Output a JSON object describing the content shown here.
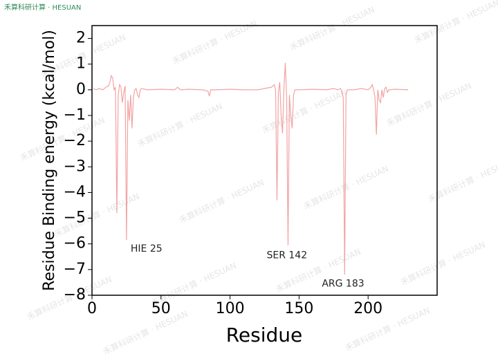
{
  "header": "禾算科研计算 · HESUAN",
  "watermark": "禾算科研计算 · HESUAN",
  "chart_data": {
    "type": "line",
    "xlabel": "Residue",
    "ylabel": "Residue Binding energy (kcal/mol)",
    "x": [
      1,
      3,
      5,
      8,
      10,
      12,
      13,
      14,
      15,
      16,
      17,
      18,
      19,
      20,
      21,
      22,
      23,
      24,
      25,
      26,
      27,
      28,
      29,
      30,
      31,
      32,
      33,
      34,
      35,
      36,
      40,
      50,
      60,
      62,
      64,
      70,
      80,
      84,
      85,
      86,
      90,
      100,
      110,
      120,
      125,
      130,
      132,
      133,
      134,
      135,
      136,
      137,
      138,
      139,
      140,
      141,
      142,
      143,
      144,
      145,
      146,
      147,
      150,
      160,
      170,
      175,
      178,
      180,
      181,
      182,
      183,
      184,
      185,
      190,
      195,
      200,
      202,
      203,
      204,
      205,
      206,
      207,
      208,
      209,
      210,
      211,
      212,
      213,
      214,
      215,
      220,
      229
    ],
    "values": [
      0.05,
      0.0,
      0.05,
      0.0,
      0.1,
      0.15,
      0.3,
      0.55,
      0.45,
      0.0,
      0.1,
      -4.8,
      -0.2,
      0.2,
      0.1,
      -0.5,
      -0.1,
      0.15,
      -5.85,
      -0.4,
      -1.2,
      -0.2,
      -1.5,
      -0.3,
      0.0,
      0.05,
      -0.2,
      -0.3,
      0.0,
      0.05,
      0.0,
      0.02,
      0.0,
      0.1,
      0.0,
      0.02,
      0.0,
      -0.05,
      -0.25,
      0.0,
      0.0,
      0.02,
      0.0,
      0.0,
      0.05,
      0.1,
      0.2,
      0.0,
      -4.3,
      -0.1,
      0.3,
      -1.0,
      -1.7,
      0.0,
      1.05,
      -0.3,
      -6.05,
      -0.2,
      -1.0,
      -1.5,
      -0.2,
      0.0,
      0.0,
      0.02,
      0.0,
      0.05,
      0.0,
      0.05,
      -0.05,
      -0.3,
      -7.2,
      -0.2,
      0.0,
      0.0,
      0.05,
      0.0,
      0.1,
      0.2,
      0.0,
      -0.3,
      -1.75,
      0.0,
      -0.4,
      -0.5,
      0.0,
      -0.3,
      0.05,
      0.1,
      -0.1,
      0.0,
      0.02,
      0.0
    ],
    "color": "#f2a3a3",
    "xlim": [
      0,
      250
    ],
    "ylim": [
      -8,
      2.5
    ],
    "xticks": [
      0,
      50,
      100,
      150,
      200
    ],
    "yticks": [
      {
        "value": -8,
        "label": "−8"
      },
      {
        "value": -7,
        "label": "−7"
      },
      {
        "value": -6,
        "label": "−6"
      },
      {
        "value": -5,
        "label": "−5"
      },
      {
        "value": -4,
        "label": "−4"
      },
      {
        "value": -3,
        "label": "−3"
      },
      {
        "value": -2,
        "label": "−2"
      },
      {
        "value": -1,
        "label": "−1"
      },
      0,
      1,
      2
    ],
    "annotations": [
      {
        "text": "HIE 25",
        "x": 28,
        "y": -6.2
      },
      {
        "text": "SER 142",
        "x": 126.5,
        "y": -6.45
      },
      {
        "text": "ARG 183",
        "x": 166.5,
        "y": -7.55
      }
    ]
  }
}
